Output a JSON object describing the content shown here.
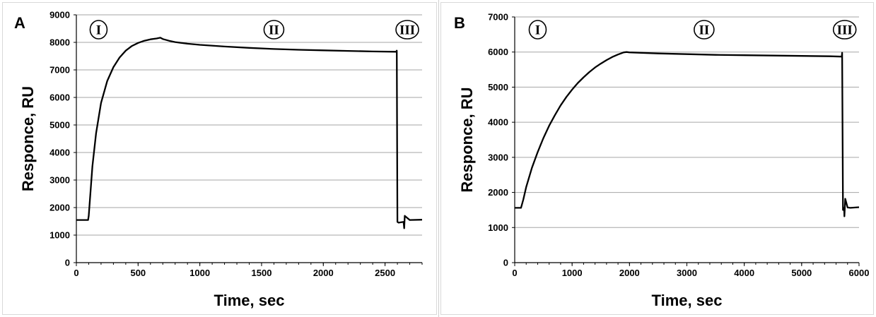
{
  "chart_data": [
    {
      "type": "line",
      "panel_label": "A",
      "xlabel": "Time, sec",
      "ylabel": "Responce, RU",
      "xlim": [
        0,
        2800
      ],
      "ylim": [
        0,
        9000
      ],
      "x_ticks": [
        "0",
        "500",
        "1000",
        "1500",
        "2000",
        "2500"
      ],
      "y_ticks": [
        "0",
        "1000",
        "2000",
        "3000",
        "4000",
        "5000",
        "6000",
        "7000",
        "8000",
        "9000"
      ],
      "grid": "horizontal",
      "phase_labels": [
        {
          "label": "I",
          "x": 180
        },
        {
          "label": "II",
          "x": 1600
        },
        {
          "label": "III",
          "x": 2680
        }
      ],
      "series": [
        {
          "x": [
            0,
            95,
            100,
            130,
            160,
            200,
            250,
            300,
            350,
            400,
            450,
            500,
            550,
            600,
            650,
            680,
            700,
            750,
            800,
            900,
            1000,
            1200,
            1400,
            1600,
            1800,
            2000,
            2200,
            2400,
            2590,
            2595,
            2600,
            2610,
            2650,
            2655,
            2660,
            2700,
            2800
          ],
          "y": [
            1550,
            1550,
            1700,
            3500,
            4700,
            5800,
            6600,
            7100,
            7450,
            7700,
            7870,
            7980,
            8060,
            8110,
            8140,
            8170,
            8120,
            8060,
            8010,
            7950,
            7910,
            7850,
            7800,
            7760,
            7730,
            7710,
            7690,
            7670,
            7660,
            7700,
            1480,
            1450,
            1480,
            1250,
            1700,
            1550,
            1560
          ]
        }
      ]
    },
    {
      "type": "line",
      "panel_label": "B",
      "xlabel": "Time, sec",
      "ylabel": "Responce, RU",
      "xlim": [
        0,
        6000
      ],
      "ylim": [
        0,
        7000
      ],
      "x_ticks": [
        "0",
        "1000",
        "2000",
        "3000",
        "4000",
        "5000",
        "6000"
      ],
      "y_ticks": [
        "0",
        "1000",
        "2000",
        "3000",
        "4000",
        "5000",
        "6000",
        "7000"
      ],
      "grid": "horizontal",
      "phase_labels": [
        {
          "label": "I",
          "x": 400
        },
        {
          "label": "II",
          "x": 3300
        },
        {
          "label": "III",
          "x": 5750
        }
      ],
      "series": [
        {
          "x": [
            0,
            110,
            150,
            200,
            300,
            400,
            500,
            600,
            700,
            800,
            900,
            1000,
            1100,
            1200,
            1300,
            1400,
            1500,
            1600,
            1700,
            1800,
            1900,
            1950,
            2000,
            2500,
            3000,
            3500,
            4000,
            4500,
            5000,
            5500,
            5700,
            5705,
            5720,
            5740,
            5745,
            5760,
            5800,
            5850,
            6000
          ],
          "y": [
            1560,
            1560,
            1800,
            2150,
            2700,
            3150,
            3550,
            3900,
            4200,
            4480,
            4720,
            4930,
            5120,
            5280,
            5430,
            5560,
            5670,
            5770,
            5860,
            5930,
            5990,
            6000,
            5990,
            5960,
            5940,
            5920,
            5910,
            5900,
            5890,
            5880,
            5870,
            5980,
            1500,
            1560,
            1320,
            1820,
            1570,
            1560,
            1580
          ]
        }
      ]
    }
  ]
}
